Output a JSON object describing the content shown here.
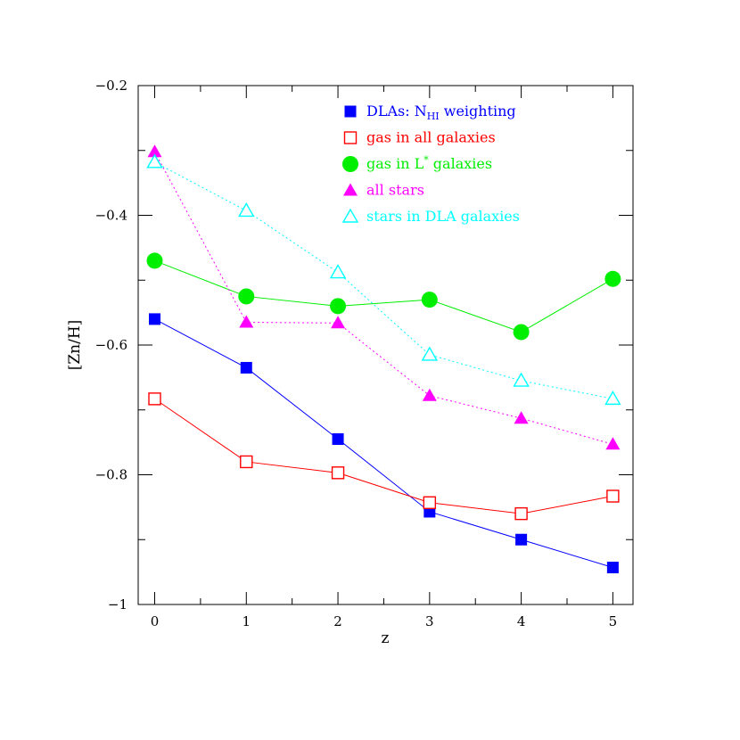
{
  "chart_data": {
    "type": "line",
    "xlabel": "z",
    "ylabel": "[Zn/H]",
    "xlim": [
      -0.18,
      5.22
    ],
    "ylim": [
      -1.0,
      -0.2
    ],
    "x_ticks": [
      0,
      1,
      2,
      3,
      4,
      5
    ],
    "x_tick_labels": [
      "0",
      "1",
      "2",
      "3",
      "4",
      "5"
    ],
    "y_ticks": [
      -1.0,
      -0.8,
      -0.6,
      -0.4,
      -0.2
    ],
    "y_tick_labels": [
      "−1",
      "−0.8",
      "−0.6",
      "−0.4",
      "−0.2"
    ],
    "grid": false,
    "legend_position": "top-right",
    "series": [
      {
        "legend_prefix": "DLAs: N",
        "legend_sub": "HI",
        "legend_suffix": " weighting",
        "color": "#0000ff",
        "marker": "filled-square",
        "line": "solid",
        "x": [
          0,
          1,
          2,
          3,
          4,
          5
        ],
        "y": [
          -0.56,
          -0.635,
          -0.745,
          -0.857,
          -0.9,
          -0.943
        ]
      },
      {
        "legend_prefix": "gas in all galaxies",
        "color": "#ff0000",
        "marker": "open-square",
        "line": "solid",
        "x": [
          0,
          1,
          2,
          3,
          4,
          5
        ],
        "y": [
          -0.683,
          -0.78,
          -0.797,
          -0.843,
          -0.86,
          -0.833
        ]
      },
      {
        "legend_prefix": "gas in L",
        "legend_sup": "*",
        "legend_suffix": " galaxies",
        "color": "#00ee00",
        "marker": "filled-circle",
        "line": "solid",
        "x": [
          0,
          1,
          2,
          3,
          4,
          5
        ],
        "y": [
          -0.47,
          -0.525,
          -0.54,
          -0.53,
          -0.58,
          -0.498
        ]
      },
      {
        "legend_prefix": "all stars",
        "color": "#ff00ff",
        "marker": "filled-triangle",
        "line": "dotted",
        "x": [
          0,
          1,
          2,
          3,
          4,
          5
        ],
        "y": [
          -0.302,
          -0.565,
          -0.566,
          -0.678,
          -0.713,
          -0.753
        ]
      },
      {
        "legend_prefix": "stars in DLA galaxies",
        "color": "#00ffff",
        "marker": "open-triangle",
        "line": "dotted",
        "x": [
          0,
          1,
          2,
          3,
          4,
          5
        ],
        "y": [
          -0.318,
          -0.393,
          -0.488,
          -0.615,
          -0.655,
          -0.683
        ]
      }
    ]
  }
}
